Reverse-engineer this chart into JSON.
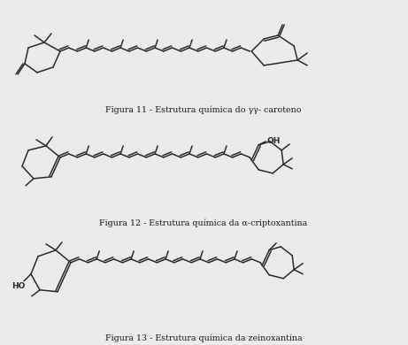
{
  "title": "Figura 12 - Estrutura química da α-criptoxantina",
  "fig11_caption": "Figura 11 - Estrutura química do γγ- caroteno",
  "fig13_caption": "Figura 13 - Estrutura química da zeinoxantina",
  "background": "#ebebeb",
  "line_color": "#2a2a2a",
  "lw": 1.1,
  "figsize": [
    4.61,
    3.9
  ],
  "dpi": 100
}
